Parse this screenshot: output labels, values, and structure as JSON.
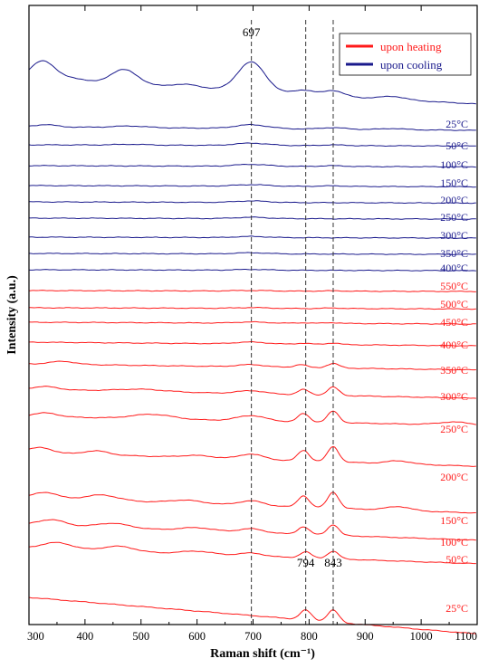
{
  "chart_data": {
    "type": "line",
    "xlabel": "Raman shift (cm⁻¹)",
    "ylabel": "Intensity (a.u.)",
    "xlim": [
      300,
      1100
    ],
    "x_ticks": [
      "300",
      "400",
      "500",
      "600",
      "700",
      "800",
      "900",
      "1000",
      "1100"
    ],
    "grid": false,
    "legend_position": "top-right",
    "legend": [
      {
        "label": "upon heating",
        "color": "#ff1a1a"
      },
      {
        "label": "upon cooling",
        "color": "#1a1a8c"
      }
    ],
    "reference_lines": [
      697,
      794,
      843
    ],
    "annotations": [
      {
        "text": "697",
        "x": 697
      },
      {
        "text": "794",
        "x": 794
      },
      {
        "text": "843",
        "x": 843
      }
    ],
    "series": [
      {
        "group": "cooling",
        "label": "",
        "baseline": 0,
        "peaks": [
          [
            325,
            52,
            30
          ],
          [
            380,
            10,
            30
          ],
          [
            470,
            40,
            35
          ],
          [
            580,
            10,
            40
          ],
          [
            697,
            78,
            35
          ],
          [
            790,
            12,
            25
          ],
          [
            843,
            15,
            25
          ],
          [
            950,
            8,
            30
          ]
        ],
        "slope": 0.08
      },
      {
        "group": "cooling",
        "label": "25°C",
        "baseline": 0,
        "peaks": [
          [
            330,
            6,
            25
          ],
          [
            480,
            4,
            40
          ],
          [
            697,
            10,
            40
          ],
          [
            843,
            4,
            30
          ],
          [
            950,
            3,
            30
          ]
        ],
        "slope": 0.012
      },
      {
        "group": "cooling",
        "label": "50°C",
        "baseline": 0,
        "peaks": [
          [
            480,
            2,
            40
          ],
          [
            697,
            6,
            40
          ],
          [
            843,
            2,
            30
          ]
        ],
        "slope": 0.004
      },
      {
        "group": "cooling",
        "label": "100°C",
        "baseline": 0,
        "peaks": [
          [
            697,
            5,
            40
          ],
          [
            843,
            2,
            30
          ]
        ],
        "slope": 0.004
      },
      {
        "group": "cooling",
        "label": "150°C",
        "baseline": 0,
        "peaks": [
          [
            697,
            4,
            40
          ],
          [
            843,
            1.5,
            30
          ]
        ],
        "slope": 0.004
      },
      {
        "group": "cooling",
        "label": "200°C",
        "baseline": 0,
        "peaks": [
          [
            697,
            4,
            40
          ]
        ],
        "slope": 0.004
      },
      {
        "group": "cooling",
        "label": "250°C",
        "baseline": 0,
        "peaks": [
          [
            697,
            3.5,
            40
          ]
        ],
        "slope": 0.003
      },
      {
        "group": "cooling",
        "label": "300°C",
        "baseline": 0,
        "peaks": [
          [
            697,
            3,
            40
          ]
        ],
        "slope": 0.003
      },
      {
        "group": "cooling",
        "label": "350°C",
        "baseline": 0,
        "peaks": [
          [
            697,
            3,
            40
          ]
        ],
        "slope": 0.003
      },
      {
        "group": "cooling",
        "label": "400°C",
        "baseline": 0,
        "peaks": [
          [
            697,
            2,
            40
          ]
        ],
        "slope": 0.003
      },
      {
        "group": "heating",
        "label": "550°C",
        "baseline": 0,
        "peaks": [
          [
            697,
            1.5,
            40
          ],
          [
            843,
            1,
            25
          ]
        ],
        "slope": 0.003
      },
      {
        "group": "heating",
        "label": "500°C",
        "baseline": 0,
        "peaks": [
          [
            697,
            2,
            40
          ],
          [
            843,
            1.5,
            25
          ]
        ],
        "slope": 0.004
      },
      {
        "group": "heating",
        "label": "450°C",
        "baseline": 0,
        "peaks": [
          [
            697,
            3,
            40
          ],
          [
            790,
            1.5,
            20
          ],
          [
            843,
            2,
            20
          ]
        ],
        "slope": 0.006
      },
      {
        "group": "heating",
        "label": "400°C",
        "baseline": 0,
        "peaks": [
          [
            697,
            5,
            40
          ],
          [
            790,
            3,
            18
          ],
          [
            843,
            4,
            18
          ]
        ],
        "slope": 0.012
      },
      {
        "group": "heating",
        "label": "350°C",
        "baseline": 0,
        "peaks": [
          [
            360,
            8,
            30
          ],
          [
            697,
            6,
            35
          ],
          [
            785,
            8,
            15
          ],
          [
            843,
            12,
            15
          ]
        ],
        "slope": 0.02
      },
      {
        "group": "heating",
        "label": "300°C",
        "baseline": 0,
        "peaks": [
          [
            330,
            8,
            30
          ],
          [
            500,
            6,
            60
          ],
          [
            697,
            8,
            35
          ],
          [
            790,
            14,
            14
          ],
          [
            843,
            22,
            14
          ]
        ],
        "slope": 0.03
      },
      {
        "group": "heating",
        "label": "250°C",
        "baseline": 0,
        "peaks": [
          [
            330,
            10,
            30
          ],
          [
            520,
            12,
            50
          ],
          [
            697,
            14,
            35
          ],
          [
            790,
            22,
            14
          ],
          [
            843,
            30,
            14
          ],
          [
            1060,
            8,
            40
          ]
        ],
        "slope": 0.03
      },
      {
        "group": "heating",
        "label": "200°C",
        "baseline": 0,
        "peaks": [
          [
            320,
            14,
            30
          ],
          [
            420,
            10,
            30
          ],
          [
            600,
            6,
            40
          ],
          [
            697,
            14,
            30
          ],
          [
            790,
            28,
            14
          ],
          [
            843,
            40,
            14
          ],
          [
            960,
            8,
            30
          ]
        ],
        "slope": 0.045
      },
      {
        "group": "heating",
        "label": "150°C",
        "baseline": 0,
        "peaks": [
          [
            330,
            16,
            30
          ],
          [
            430,
            14,
            40
          ],
          [
            580,
            8,
            40
          ],
          [
            697,
            12,
            30
          ],
          [
            790,
            30,
            14
          ],
          [
            843,
            42,
            14
          ],
          [
            960,
            10,
            30
          ]
        ],
        "slope": 0.05
      },
      {
        "group": "heating",
        "label": "100°C",
        "baseline": 0,
        "peaks": [
          [
            340,
            16,
            35
          ],
          [
            450,
            12,
            40
          ],
          [
            600,
            8,
            40
          ],
          [
            697,
            10,
            30
          ],
          [
            790,
            20,
            14
          ],
          [
            843,
            28,
            14
          ]
        ],
        "slope": 0.05
      },
      {
        "group": "heating",
        "label": "50°C",
        "baseline": 0,
        "peaks": [
          [
            350,
            18,
            40
          ],
          [
            460,
            14,
            40
          ],
          [
            600,
            8,
            40
          ],
          [
            697,
            8,
            30
          ],
          [
            794,
            16,
            14
          ],
          [
            843,
            20,
            14
          ]
        ],
        "slope": 0.05
      },
      {
        "group": "heating",
        "label": "25°C",
        "baseline": 0,
        "peaks": [
          [
            794,
            26,
            14
          ],
          [
            843,
            32,
            14
          ]
        ],
        "slope": 0.12
      }
    ]
  }
}
